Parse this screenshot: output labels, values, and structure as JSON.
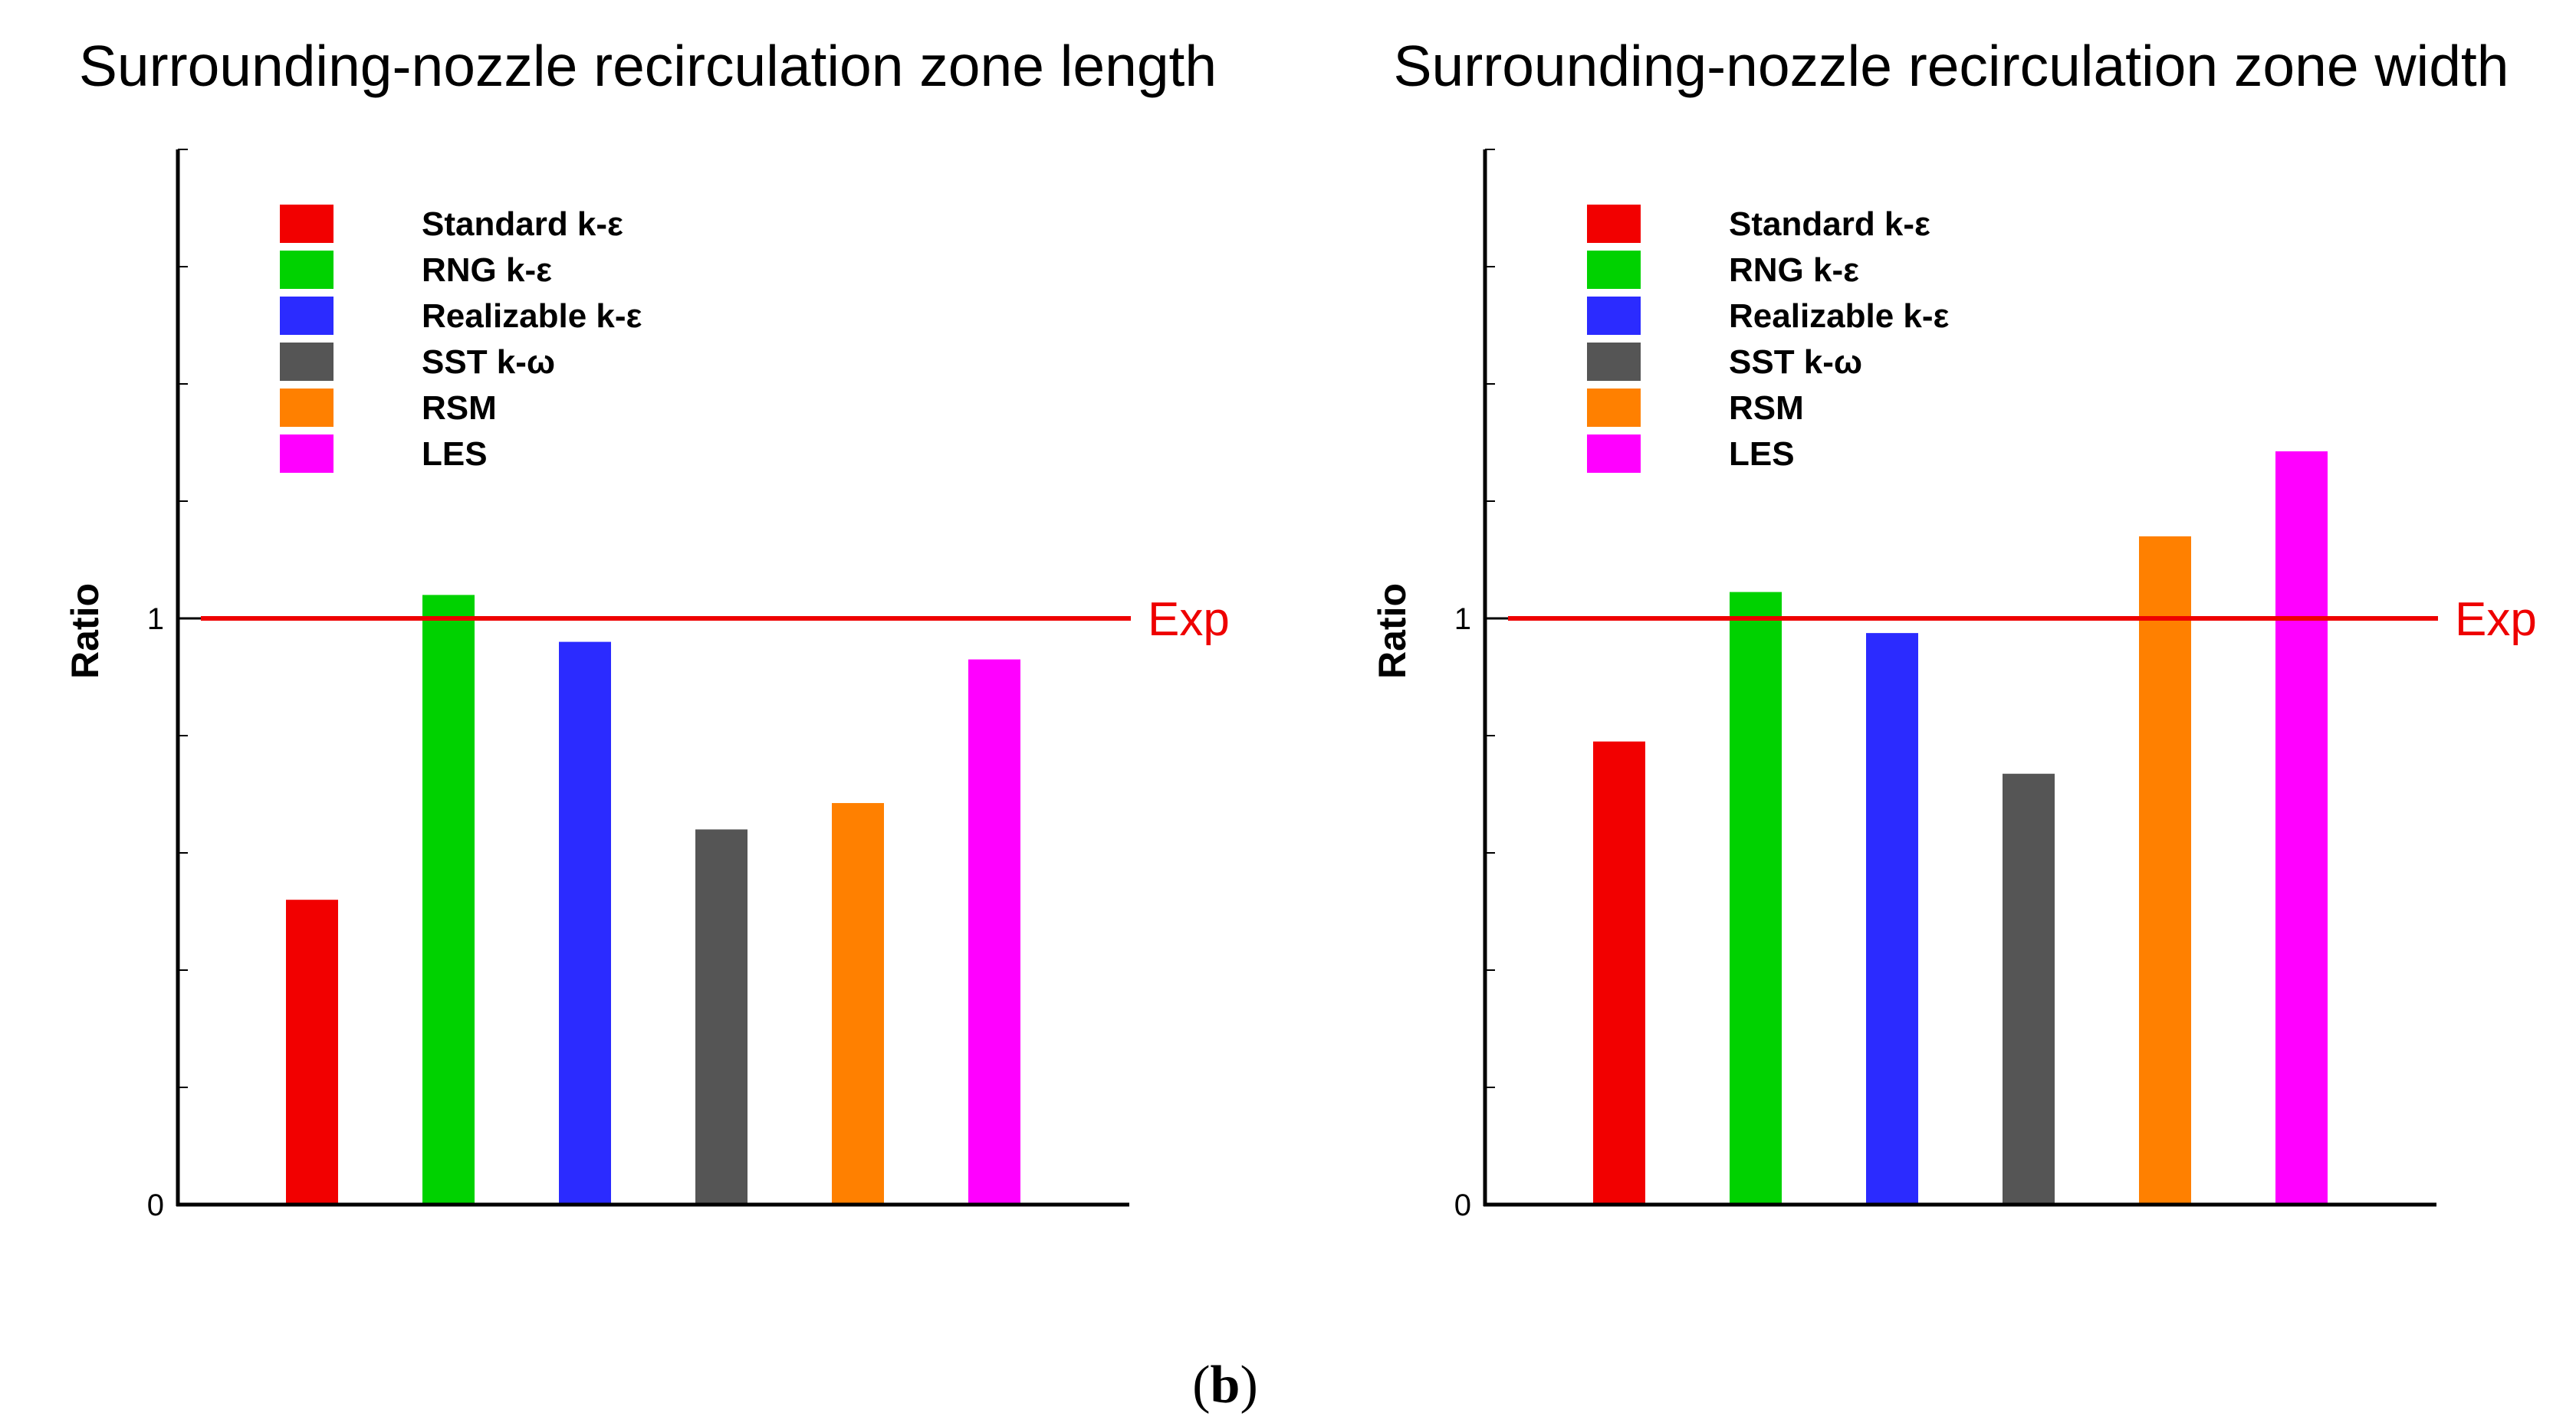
{
  "chart_data": [
    {
      "type": "bar",
      "title": "Surrounding-nozzle recirculation zone length",
      "xlabel": "",
      "ylabel": "Ratio",
      "ylim": [
        0,
        1.8
      ],
      "yticks": [
        {
          "value": 0,
          "label": "0"
        },
        {
          "value": 1,
          "label": "1"
        }
      ],
      "categories": [
        "Standard k-ε",
        "RNG k-ε",
        "Realizable k-ε",
        "SST k-ω",
        "RSM",
        "LES"
      ],
      "values": [
        0.52,
        1.04,
        0.96,
        0.64,
        0.685,
        0.93
      ],
      "colors": [
        "#f20000",
        "#00d200",
        "#2b2bff",
        "#555555",
        "#ff8000",
        "#ff00ff"
      ],
      "reference_line": {
        "value": 1.0,
        "label": "Exp",
        "color": "#ee0000"
      },
      "legend_position": "top-left"
    },
    {
      "type": "bar",
      "title": "Surrounding-nozzle recirculation zone width",
      "xlabel": "",
      "ylabel": "Ratio",
      "ylim": [
        0,
        1.8
      ],
      "yticks": [
        {
          "value": 0,
          "label": "0"
        },
        {
          "value": 1,
          "label": "1"
        }
      ],
      "categories": [
        "Standard k-ε",
        "RNG k-ε",
        "Realizable k-ε",
        "SST k-ω",
        "RSM",
        "LES"
      ],
      "values": [
        0.79,
        1.045,
        0.975,
        0.735,
        1.14,
        1.285
      ],
      "colors": [
        "#f20000",
        "#00d200",
        "#2b2bff",
        "#555555",
        "#ff8000",
        "#ff00ff"
      ],
      "reference_line": {
        "value": 1.0,
        "label": "Exp",
        "color": "#ee0000"
      },
      "legend_position": "top-left"
    }
  ],
  "caption": {
    "open": "(",
    "letter": "b",
    "close": ")"
  }
}
